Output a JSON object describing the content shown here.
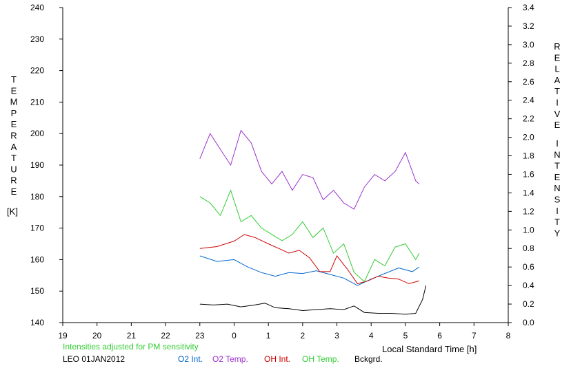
{
  "chart_data": {
    "type": "line",
    "note": "Intensities adjusted for PM sensitivity",
    "site_date": "LEO 01JAN2012",
    "xlabel": "Local Standard Time [h]",
    "x_ticks": [
      "19",
      "20",
      "21",
      "22",
      "23",
      "0",
      "1",
      "2",
      "3",
      "4",
      "5",
      "6",
      "7",
      "8"
    ],
    "left_axis": {
      "label_letters": [
        "T",
        "E",
        "M",
        "P",
        "E",
        "R",
        "A",
        "T",
        "U",
        "R",
        "E"
      ],
      "unit": "[K]",
      "ylim": [
        140,
        240
      ],
      "ticks": [
        "140",
        "150",
        "160",
        "170",
        "180",
        "190",
        "200",
        "210",
        "220",
        "230",
        "240"
      ]
    },
    "right_axis": {
      "label_letters_1": [
        "R",
        "E",
        "L",
        "A",
        "T",
        "I",
        "V",
        "E"
      ],
      "label_letters_2": [
        "I",
        "N",
        "T",
        "E",
        "N",
        "S",
        "I",
        "T",
        "Y"
      ],
      "ylim": [
        0.0,
        3.4
      ],
      "ticks": [
        "0.0",
        "0.2",
        "0.4",
        "0.6",
        "0.8",
        "1.0",
        "1.2",
        "1.4",
        "1.6",
        "1.8",
        "2.0",
        "2.2",
        "2.4",
        "2.6",
        "2.8",
        "3.0",
        "3.2",
        "3.4"
      ]
    },
    "grid": false,
    "legend_position": "bottom",
    "series": [
      {
        "name": "O2 Int.",
        "color": "#0066cc",
        "axis": "right",
        "x": [
          23.0,
          23.5,
          24.0,
          24.4,
          24.8,
          25.2,
          25.6,
          26.0,
          26.4,
          26.8,
          27.2,
          27.6,
          28.0,
          28.4,
          28.8,
          29.2,
          29.4
        ],
        "y": [
          0.72,
          0.66,
          0.68,
          0.6,
          0.54,
          0.5,
          0.54,
          0.53,
          0.56,
          0.52,
          0.48,
          0.4,
          0.47,
          0.53,
          0.59,
          0.55,
          0.6
        ]
      },
      {
        "name": "O2 Temp.",
        "color": "#9933cc",
        "axis": "left",
        "x": [
          23.0,
          23.3,
          23.6,
          23.9,
          24.2,
          24.5,
          24.8,
          25.1,
          25.4,
          25.7,
          26.0,
          26.3,
          26.6,
          26.9,
          27.2,
          27.5,
          27.8,
          28.1,
          28.4,
          28.7,
          29.0,
          29.3,
          29.4
        ],
        "y": [
          192,
          200,
          195,
          190,
          201,
          197,
          188,
          184,
          188,
          182,
          187,
          186,
          179,
          182,
          178,
          176,
          183,
          187,
          185,
          188,
          194,
          185,
          184
        ]
      },
      {
        "name": "OH Int.",
        "color": "#cc0000",
        "axis": "right",
        "x": [
          23.0,
          23.5,
          24.0,
          24.3,
          24.6,
          25.0,
          25.3,
          25.6,
          25.9,
          26.2,
          26.5,
          26.8,
          27.0,
          27.3,
          27.6,
          27.9,
          28.2,
          28.5,
          28.8,
          29.1,
          29.4
        ],
        "y": [
          0.8,
          0.82,
          0.88,
          0.95,
          0.92,
          0.85,
          0.8,
          0.75,
          0.78,
          0.7,
          0.55,
          0.55,
          0.72,
          0.58,
          0.42,
          0.45,
          0.5,
          0.48,
          0.47,
          0.42,
          0.45
        ]
      },
      {
        "name": "OH Temp.",
        "color": "#33cc33",
        "axis": "left",
        "x": [
          23.0,
          23.3,
          23.6,
          23.9,
          24.2,
          24.5,
          24.8,
          25.1,
          25.4,
          25.7,
          26.0,
          26.3,
          26.6,
          26.9,
          27.2,
          27.5,
          27.8,
          28.1,
          28.4,
          28.7,
          29.0,
          29.3,
          29.4
        ],
        "y": [
          180,
          178,
          174,
          182,
          172,
          174,
          170,
          168,
          166,
          168,
          172,
          167,
          170,
          162,
          165,
          156,
          153,
          160,
          158,
          164,
          165,
          160,
          162
        ]
      },
      {
        "name": "Bckgrd.",
        "color": "#000000",
        "axis": "right",
        "x": [
          23.0,
          23.4,
          23.8,
          24.2,
          24.6,
          24.9,
          25.2,
          25.6,
          26.0,
          26.4,
          26.8,
          27.2,
          27.5,
          27.8,
          28.2,
          28.6,
          29.0,
          29.3,
          29.5,
          29.6
        ],
        "y": [
          0.2,
          0.19,
          0.2,
          0.17,
          0.19,
          0.21,
          0.16,
          0.15,
          0.13,
          0.14,
          0.15,
          0.14,
          0.18,
          0.11,
          0.1,
          0.1,
          0.09,
          0.1,
          0.25,
          0.4
        ]
      }
    ]
  }
}
